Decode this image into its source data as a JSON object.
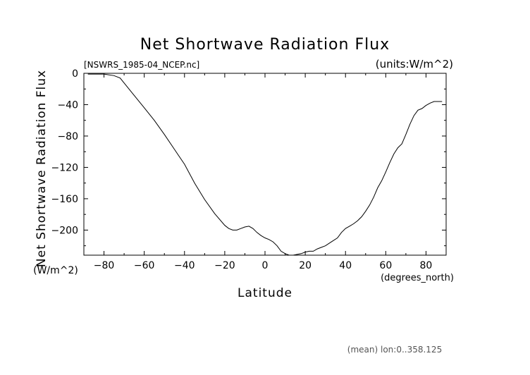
{
  "chart_data": {
    "type": "line",
    "title": "Net Shortwave Radiation Flux",
    "file_label": "[NSWRS_1985-04_NCEP.nc]",
    "units_label": "(units:W/m^2)",
    "ylabel": "Net Shortwave Radiation Flux",
    "ylabel_units": "(W/m^2)",
    "xlabel": "Latitude",
    "xlabel_units": "(degrees_north)",
    "footer": "(mean) lon:0..358.125",
    "xlim": [
      -90,
      90
    ],
    "ylim": [
      -232,
      0
    ],
    "xticks": [
      -80,
      -60,
      -40,
      -20,
      0,
      20,
      40,
      60,
      80
    ],
    "yticks": [
      0,
      -40,
      -80,
      -120,
      -160,
      -200
    ],
    "x": [
      -88,
      -84,
      -80,
      -75,
      -72,
      -66,
      -60,
      -55,
      -50,
      -45,
      -40,
      -35,
      -30,
      -25,
      -20,
      -18,
      -16,
      -14,
      -12,
      -10,
      -8,
      -6,
      -4,
      -2,
      0,
      2,
      4,
      6,
      8,
      10,
      12,
      14,
      16,
      18,
      20,
      22,
      24,
      26,
      28,
      30,
      33,
      36,
      38,
      40,
      42,
      44,
      46,
      48,
      50,
      52,
      54,
      56,
      58,
      60,
      62,
      64,
      66,
      68,
      70,
      72,
      74,
      76,
      78,
      80,
      82,
      84,
      86,
      88
    ],
    "y": [
      -1,
      -1,
      -1,
      -3,
      -6,
      -25,
      -44,
      -60,
      -78,
      -97,
      -116,
      -140,
      -161,
      -179,
      -194,
      -198,
      -200,
      -200,
      -198,
      -196,
      -195,
      -198,
      -203,
      -207,
      -210,
      -212,
      -215,
      -220,
      -227,
      -230,
      -232,
      -232,
      -231,
      -230,
      -228,
      -227,
      -227,
      -224,
      -222,
      -220,
      -215,
      -210,
      -203,
      -198,
      -195,
      -192,
      -188,
      -183,
      -176,
      -168,
      -158,
      -146,
      -137,
      -126,
      -114,
      -103,
      -95,
      -90,
      -78,
      -65,
      -54,
      -47,
      -45,
      -41,
      -38,
      -36,
      -36,
      -36
    ]
  }
}
